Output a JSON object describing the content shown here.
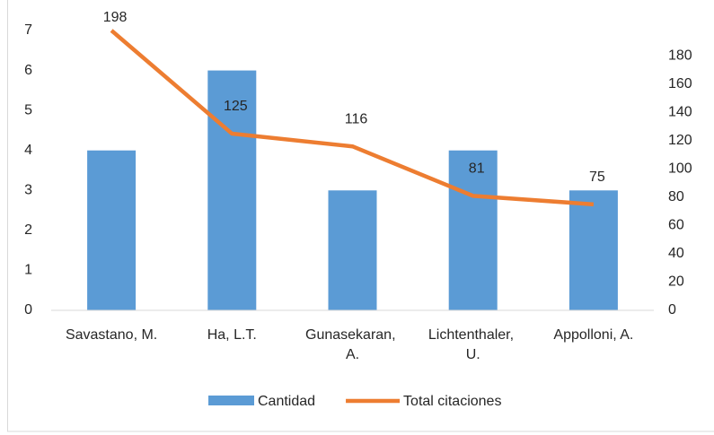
{
  "chart_data": {
    "type": "bar_line",
    "categories": [
      "Savastano, M.",
      "Ha, L.T.",
      "Gunasekaran, A.",
      "Lichtenthaler, U.",
      "Appolloni, A."
    ],
    "series": [
      {
        "name": "Cantidad",
        "type": "bar",
        "color": "#5b9bd5",
        "values": [
          4,
          6,
          3,
          4,
          3
        ]
      },
      {
        "name": "Total citaciones",
        "type": "line",
        "axis": "y2",
        "color": "#ed7d31",
        "values": [
          198,
          125,
          116,
          81,
          75
        ],
        "data_labels": true
      }
    ],
    "ylim": [
      0,
      7
    ],
    "yticks": [
      0,
      1,
      2,
      3,
      4,
      5,
      6,
      7
    ],
    "y2lim": [
      0,
      198
    ],
    "y2ticks": [
      0,
      20,
      40,
      60,
      80,
      100,
      120,
      140,
      160,
      180
    ],
    "grid": false,
    "legend": "bottom"
  }
}
